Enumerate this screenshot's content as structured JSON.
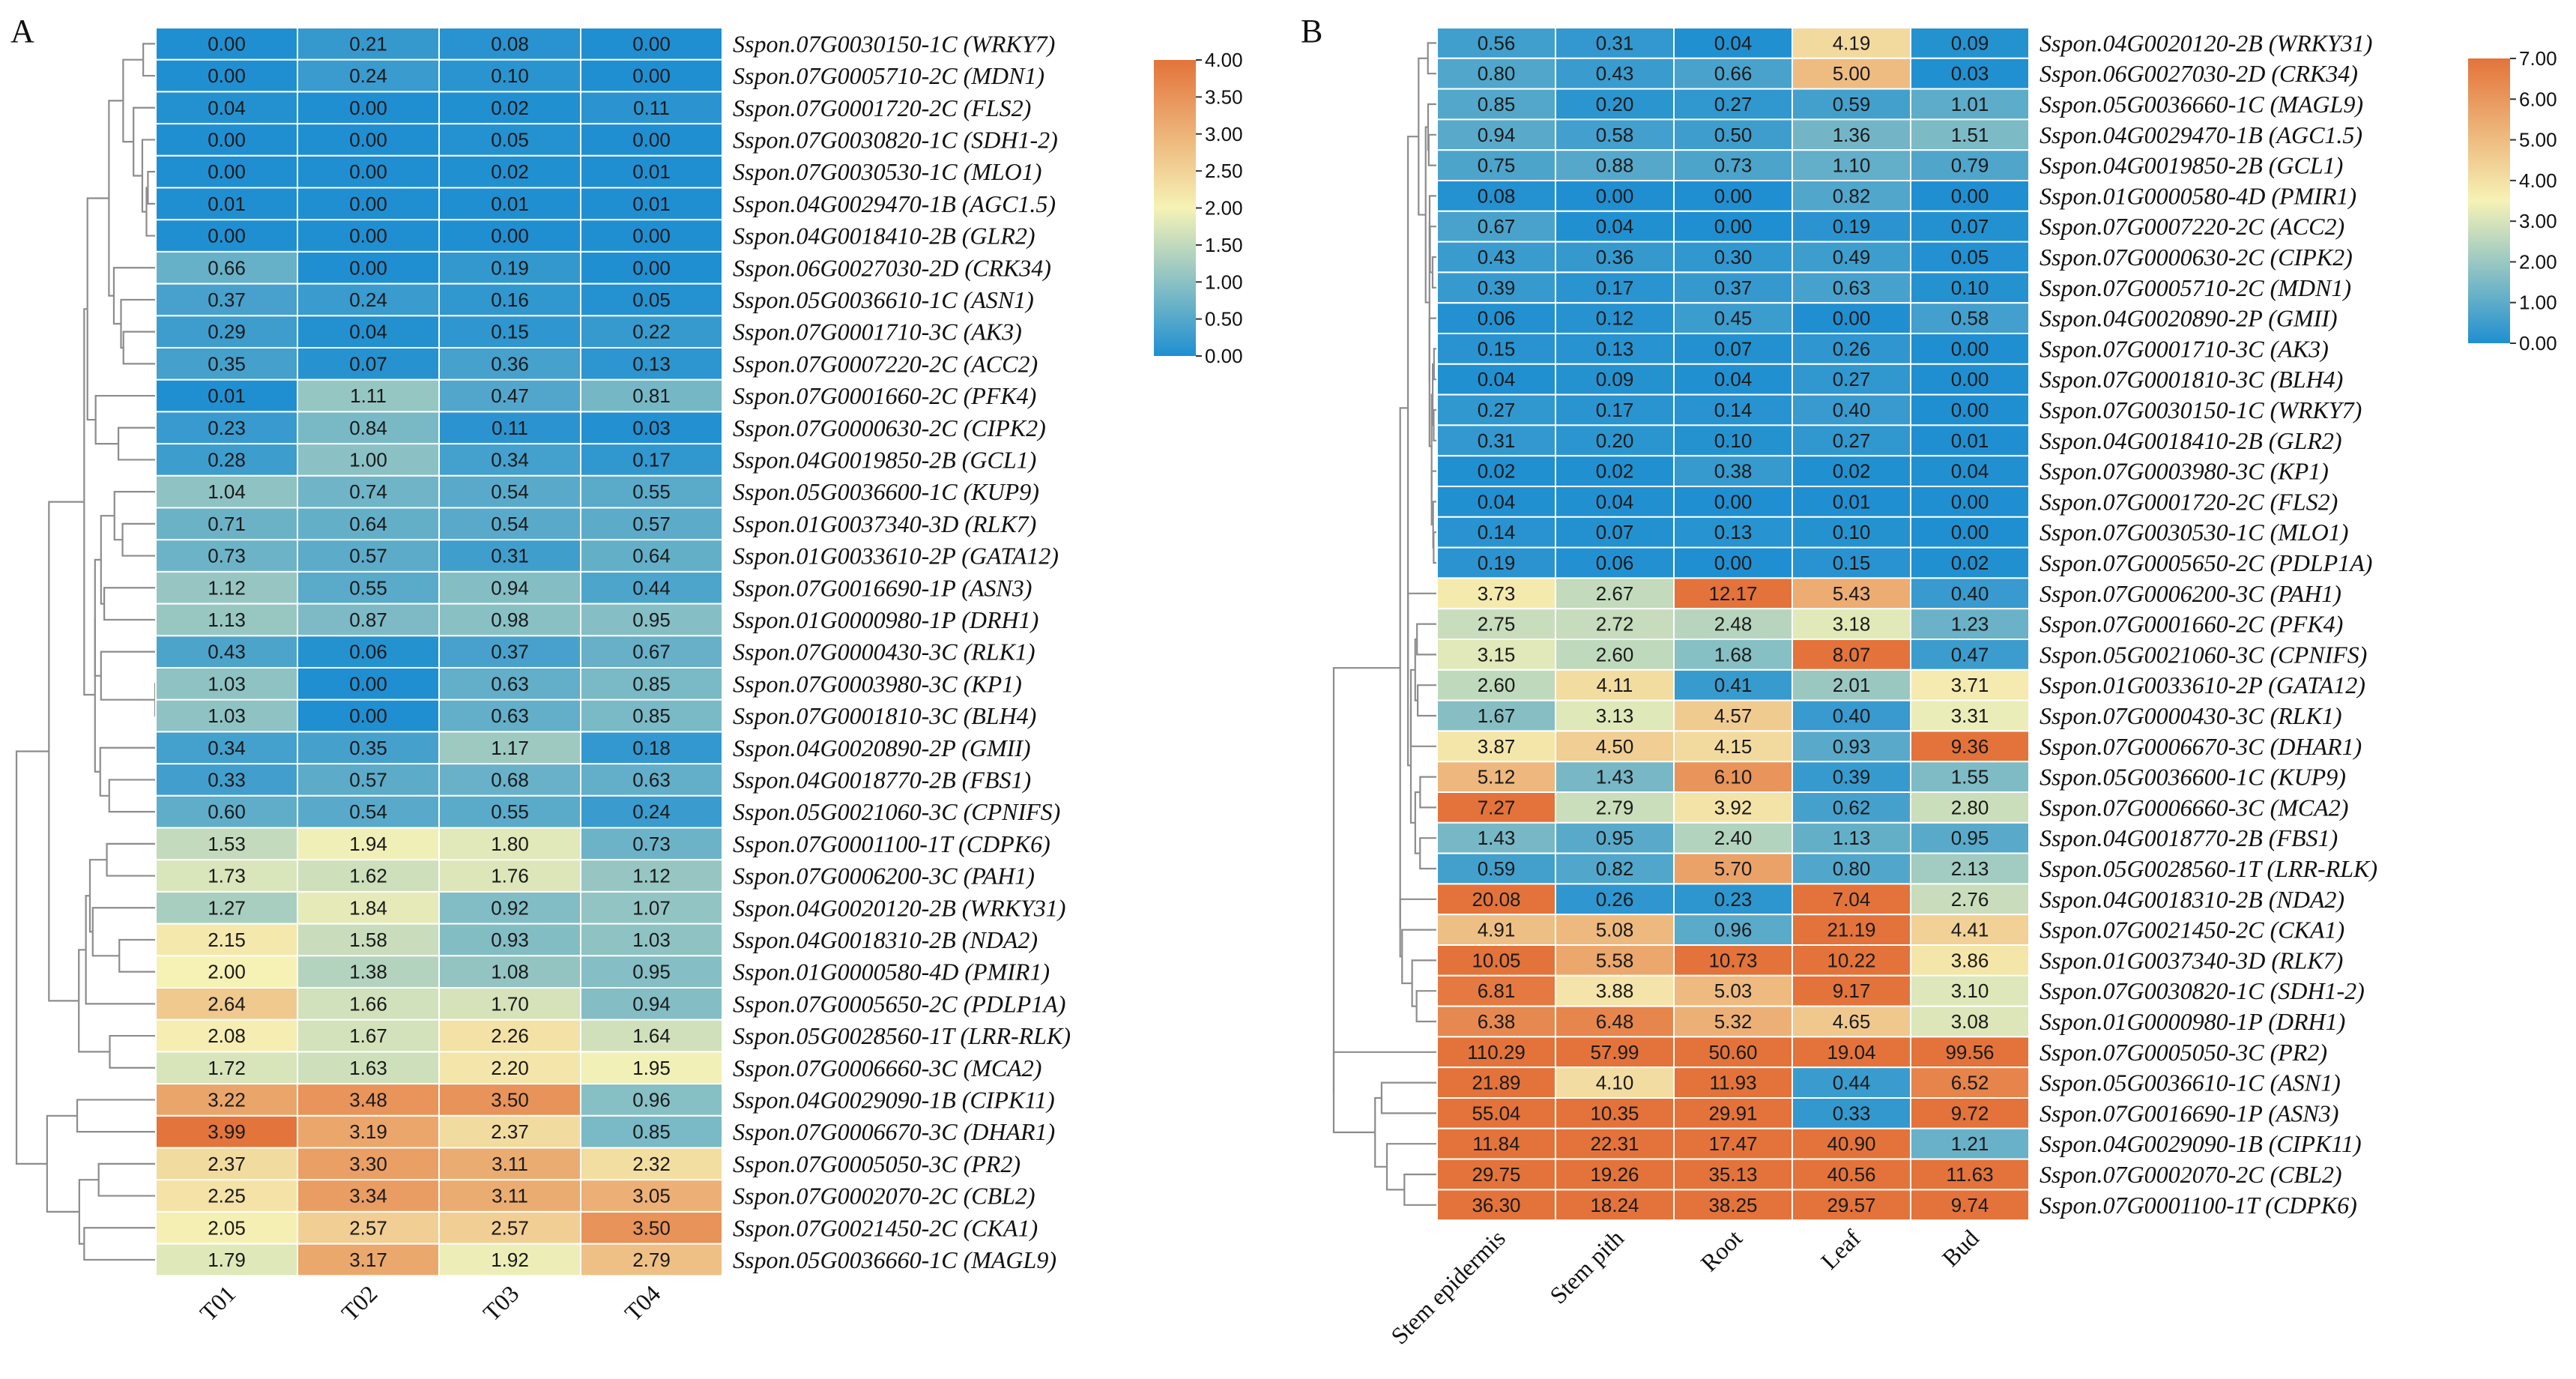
{
  "figure": {
    "colors": {
      "low": "#1f8fd1",
      "mid": "#f6f2b6",
      "high": "#e3733a",
      "dendrogram": "#8c8c8c",
      "grid": "#ffffff"
    }
  },
  "chart_data": [
    {
      "type": "heatmap",
      "panel_label": "A",
      "title": "",
      "columns": [
        "T01",
        "T02",
        "T03",
        "T04"
      ],
      "rows": [
        "Sspon.07G0030150-1C (WRKY7)",
        "Sspon.07G0005710-2C (MDN1)",
        "Sspon.07G0001720-2C (FLS2)",
        "Sspon.07G0030820-1C (SDH1-2)",
        "Sspon.07G0030530-1C (MLO1)",
        "Sspon.04G0029470-1B (AGC1.5)",
        "Sspon.04G0018410-2B (GLR2)",
        "Sspon.06G0027030-2D (CRK34)",
        "Sspon.05G0036610-1C (ASN1)",
        "Sspon.07G0001710-3C (AK3)",
        "Sspon.07G0007220-2C (ACC2)",
        "Sspon.07G0001660-2C (PFK4)",
        "Sspon.07G0000630-2C (CIPK2)",
        "Sspon.04G0019850-2B (GCL1)",
        "Sspon.05G0036600-1C (KUP9)",
        "Sspon.01G0037340-3D (RLK7)",
        "Sspon.01G0033610-2P (GATA12)",
        "Sspon.07G0016690-1P (ASN3)",
        "Sspon.01G0000980-1P (DRH1)",
        "Sspon.07G0000430-3C (RLK1)",
        "Sspon.07G0003980-3C (KP1)",
        "Sspon.07G0001810-3C (BLH4)",
        "Sspon.04G0020890-2P (GMII)",
        "Sspon.04G0018770-2B (FBS1)",
        "Sspon.05G0021060-3C (CPNIFS)",
        "Sspon.07G0001100-1T (CDPK6)",
        "Sspon.07G0006200-3C (PAH1)",
        "Sspon.04G0020120-2B (WRKY31)",
        "Sspon.04G0018310-2B (NDA2)",
        "Sspon.01G0000580-4D (PMIR1)",
        "Sspon.07G0005650-2C (PDLP1A)",
        "Sspon.05G0028560-1T (LRR-RLK)",
        "Sspon.07G0006660-3C (MCA2)",
        "Sspon.04G0029090-1B (CIPK11)",
        "Sspon.07G0006670-3C (DHAR1)",
        "Sspon.07G0005050-3C (PR2)",
        "Sspon.07G0002070-2C (CBL2)",
        "Sspon.07G0021450-2C (CKA1)",
        "Sspon.05G0036660-1C (MAGL9)"
      ],
      "values": [
        [
          "0.00",
          "0.21",
          "0.08",
          "0.00"
        ],
        [
          "0.00",
          "0.24",
          "0.10",
          "0.00"
        ],
        [
          "0.04",
          "0.00",
          "0.02",
          "0.11"
        ],
        [
          "0.00",
          "0.00",
          "0.05",
          "0.00"
        ],
        [
          "0.00",
          "0.00",
          "0.02",
          "0.01"
        ],
        [
          "0.01",
          "0.00",
          "0.01",
          "0.01"
        ],
        [
          "0.00",
          "0.00",
          "0.00",
          "0.00"
        ],
        [
          "0.66",
          "0.00",
          "0.19",
          "0.00"
        ],
        [
          "0.37",
          "0.24",
          "0.16",
          "0.05"
        ],
        [
          "0.29",
          "0.04",
          "0.15",
          "0.22"
        ],
        [
          "0.35",
          "0.07",
          "0.36",
          "0.13"
        ],
        [
          "0.01",
          "1.11",
          "0.47",
          "0.81"
        ],
        [
          "0.23",
          "0.84",
          "0.11",
          "0.03"
        ],
        [
          "0.28",
          "1.00",
          "0.34",
          "0.17"
        ],
        [
          "1.04",
          "0.74",
          "0.54",
          "0.55"
        ],
        [
          "0.71",
          "0.64",
          "0.54",
          "0.57"
        ],
        [
          "0.73",
          "0.57",
          "0.31",
          "0.64"
        ],
        [
          "1.12",
          "0.55",
          "0.94",
          "0.44"
        ],
        [
          "1.13",
          "0.87",
          "0.98",
          "0.95"
        ],
        [
          "0.43",
          "0.06",
          "0.37",
          "0.67"
        ],
        [
          "1.03",
          "0.00",
          "0.63",
          "0.85"
        ],
        [
          "1.03",
          "0.00",
          "0.63",
          "0.85"
        ],
        [
          "0.34",
          "0.35",
          "1.17",
          "0.18"
        ],
        [
          "0.33",
          "0.57",
          "0.68",
          "0.63"
        ],
        [
          "0.60",
          "0.54",
          "0.55",
          "0.24"
        ],
        [
          "1.53",
          "1.94",
          "1.80",
          "0.73"
        ],
        [
          "1.73",
          "1.62",
          "1.76",
          "1.12"
        ],
        [
          "1.27",
          "1.84",
          "0.92",
          "1.07"
        ],
        [
          "2.15",
          "1.58",
          "0.93",
          "1.03"
        ],
        [
          "2.00",
          "1.38",
          "1.08",
          "0.95"
        ],
        [
          "2.64",
          "1.66",
          "1.70",
          "0.94"
        ],
        [
          "2.08",
          "1.67",
          "2.26",
          "1.64"
        ],
        [
          "1.72",
          "1.63",
          "2.20",
          "1.95"
        ],
        [
          "3.22",
          "3.48",
          "3.50",
          "0.96"
        ],
        [
          "3.99",
          "3.19",
          "2.37",
          "0.85"
        ],
        [
          "2.37",
          "3.30",
          "3.11",
          "2.32"
        ],
        [
          "2.25",
          "3.34",
          "3.11",
          "3.05"
        ],
        [
          "2.05",
          "2.57",
          "2.57",
          "3.50"
        ],
        [
          "1.79",
          "3.17",
          "1.92",
          "2.79"
        ]
      ],
      "colorbar": {
        "min": 0,
        "max": 4,
        "ticks": [
          "4.00",
          "3.50",
          "3.00",
          "2.50",
          "2.00",
          "1.50",
          "1.00",
          "0.50",
          "0.00"
        ]
      }
    },
    {
      "type": "heatmap",
      "panel_label": "B",
      "title": "",
      "columns": [
        "Stem epidermis",
        "Stem pith",
        "Root",
        "Leaf",
        "Bud"
      ],
      "rows": [
        "Sspon.04G0020120-2B (WRKY31)",
        "Sspon.06G0027030-2D (CRK34)",
        "Sspon.05G0036660-1C (MAGL9)",
        "Sspon.04G0029470-1B (AGC1.5)",
        "Sspon.04G0019850-2B (GCL1)",
        "Sspon.01G0000580-4D (PMIR1)",
        "Sspon.07G0007220-2C (ACC2)",
        "Sspon.07G0000630-2C (CIPK2)",
        "Sspon.07G0005710-2C (MDN1)",
        "Sspon.04G0020890-2P (GMII)",
        "Sspon.07G0001710-3C (AK3)",
        "Sspon.07G0001810-3C (BLH4)",
        "Sspon.07G0030150-1C (WRKY7)",
        "Sspon.04G0018410-2B (GLR2)",
        "Sspon.07G0003980-3C (KP1)",
        "Sspon.07G0001720-2C (FLS2)",
        "Sspon.07G0030530-1C (MLO1)",
        "Sspon.07G0005650-2C (PDLP1A)",
        "Sspon.07G0006200-3C (PAH1)",
        "Sspon.07G0001660-2C (PFK4)",
        "Sspon.05G0021060-3C (CPNIFS)",
        "Sspon.01G0033610-2P (GATA12)",
        "Sspon.07G0000430-3C (RLK1)",
        "Sspon.07G0006670-3C (DHAR1)",
        "Sspon.05G0036600-1C (KUP9)",
        "Sspon.07G0006660-3C (MCA2)",
        "Sspon.04G0018770-2B (FBS1)",
        "Sspon.05G0028560-1T (LRR-RLK)",
        "Sspon.04G0018310-2B (NDA2)",
        "Sspon.07G0021450-2C (CKA1)",
        "Sspon.01G0037340-3D (RLK7)",
        "Sspon.07G0030820-1C (SDH1-2)",
        "Sspon.01G0000980-1P (DRH1)",
        "Sspon.07G0005050-3C (PR2)",
        "Sspon.05G0036610-1C (ASN1)",
        "Sspon.07G0016690-1P (ASN3)",
        "Sspon.04G0029090-1B (CIPK11)",
        "Sspon.07G0002070-2C (CBL2)",
        "Sspon.07G0001100-1T (CDPK6)"
      ],
      "values": [
        [
          "0.56",
          "0.31",
          "0.04",
          "4.19",
          "0.09"
        ],
        [
          "0.80",
          "0.43",
          "0.66",
          "5.00",
          "0.03"
        ],
        [
          "0.85",
          "0.20",
          "0.27",
          "0.59",
          "1.01"
        ],
        [
          "0.94",
          "0.58",
          "0.50",
          "1.36",
          "1.51"
        ],
        [
          "0.75",
          "0.88",
          "0.73",
          "1.10",
          "0.79"
        ],
        [
          "0.08",
          "0.00",
          "0.00",
          "0.82",
          "0.00"
        ],
        [
          "0.67",
          "0.04",
          "0.00",
          "0.19",
          "0.07"
        ],
        [
          "0.43",
          "0.36",
          "0.30",
          "0.49",
          "0.05"
        ],
        [
          "0.39",
          "0.17",
          "0.37",
          "0.63",
          "0.10"
        ],
        [
          "0.06",
          "0.12",
          "0.45",
          "0.00",
          "0.58"
        ],
        [
          "0.15",
          "0.13",
          "0.07",
          "0.26",
          "0.00"
        ],
        [
          "0.04",
          "0.09",
          "0.04",
          "0.27",
          "0.00"
        ],
        [
          "0.27",
          "0.17",
          "0.14",
          "0.40",
          "0.00"
        ],
        [
          "0.31",
          "0.20",
          "0.10",
          "0.27",
          "0.01"
        ],
        [
          "0.02",
          "0.02",
          "0.38",
          "0.02",
          "0.04"
        ],
        [
          "0.04",
          "0.04",
          "0.00",
          "0.01",
          "0.00"
        ],
        [
          "0.14",
          "0.07",
          "0.13",
          "0.10",
          "0.00"
        ],
        [
          "0.19",
          "0.06",
          "0.00",
          "0.15",
          "0.02"
        ],
        [
          "3.73",
          "2.67",
          "12.17",
          "5.43",
          "0.40"
        ],
        [
          "2.75",
          "2.72",
          "2.48",
          "3.18",
          "1.23"
        ],
        [
          "3.15",
          "2.60",
          "1.68",
          "8.07",
          "0.47"
        ],
        [
          "2.60",
          "4.11",
          "0.41",
          "2.01",
          "3.71"
        ],
        [
          "1.67",
          "3.13",
          "4.57",
          "0.40",
          "3.31"
        ],
        [
          "3.87",
          "4.50",
          "4.15",
          "0.93",
          "9.36"
        ],
        [
          "5.12",
          "1.43",
          "6.10",
          "0.39",
          "1.55"
        ],
        [
          "7.27",
          "2.79",
          "3.92",
          "0.62",
          "2.80"
        ],
        [
          "1.43",
          "0.95",
          "2.40",
          "1.13",
          "0.95"
        ],
        [
          "0.59",
          "0.82",
          "5.70",
          "0.80",
          "2.13"
        ],
        [
          "20.08",
          "0.26",
          "0.23",
          "7.04",
          "2.76"
        ],
        [
          "4.91",
          "5.08",
          "0.96",
          "21.19",
          "4.41"
        ],
        [
          "10.05",
          "5.58",
          "10.73",
          "10.22",
          "3.86"
        ],
        [
          "6.81",
          "3.88",
          "5.03",
          "9.17",
          "3.10"
        ],
        [
          "6.38",
          "6.48",
          "5.32",
          "4.65",
          "3.08"
        ],
        [
          "110.29",
          "57.99",
          "50.60",
          "19.04",
          "99.56"
        ],
        [
          "21.89",
          "4.10",
          "11.93",
          "0.44",
          "6.52"
        ],
        [
          "55.04",
          "10.35",
          "29.91",
          "0.33",
          "9.72"
        ],
        [
          "11.84",
          "22.31",
          "17.47",
          "40.90",
          "1.21"
        ],
        [
          "29.75",
          "19.26",
          "35.13",
          "40.56",
          "11.63"
        ],
        [
          "36.30",
          "18.24",
          "38.25",
          "29.57",
          "9.74"
        ]
      ],
      "colorbar": {
        "min": 0,
        "max": 7,
        "ticks": [
          "7.00",
          "6.00",
          "5.00",
          "4.00",
          "3.00",
          "2.00",
          "1.00",
          "0.00"
        ]
      }
    }
  ]
}
